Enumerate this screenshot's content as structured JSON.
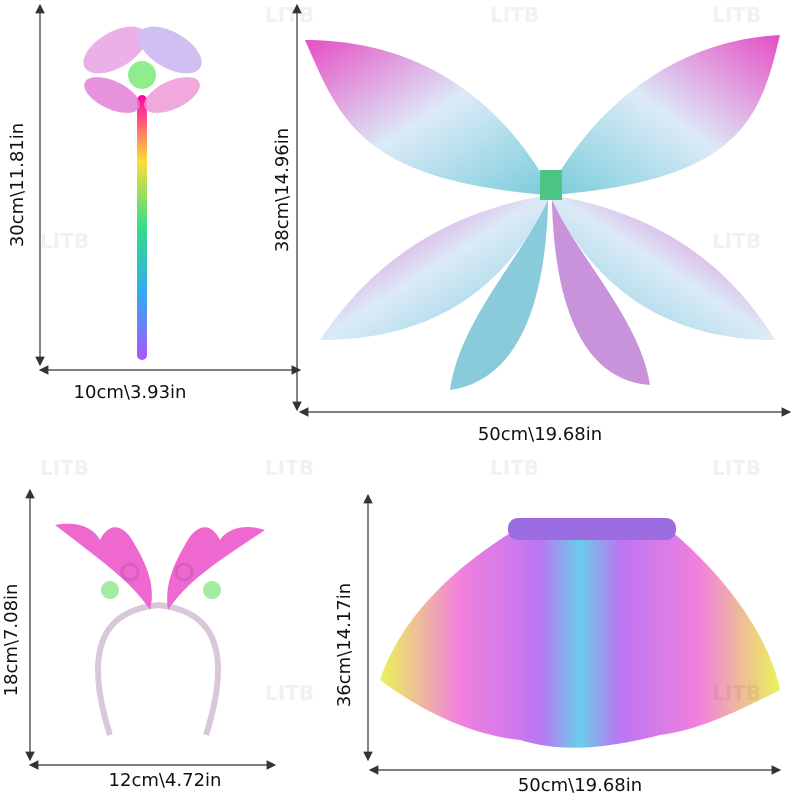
{
  "watermark": "LITB",
  "items": [
    {
      "height": "30cm\\11.81in",
      "width": "10cm\\3.93in"
    },
    {
      "height": "38cm\\14.96in",
      "width": "50cm\\19.68in"
    },
    {
      "height": "18cm\\7.08in",
      "width": "12cm\\4.72in"
    },
    {
      "height": "36cm\\14.17in",
      "width": "50cm\\19.68in"
    }
  ]
}
